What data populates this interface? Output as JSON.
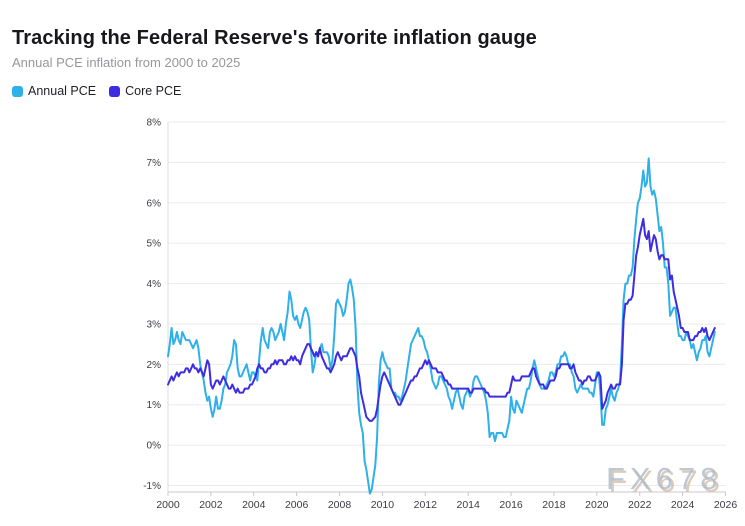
{
  "header": {
    "title": "Tracking the Federal Reserve's favorite inflation gauge",
    "subtitle": "Annual PCE inflation from 2000 to 2025"
  },
  "legend": [
    {
      "label": "Annual PCE",
      "color": "#2eb0e8"
    },
    {
      "label": "Core PCE",
      "color": "#3d2ce0"
    }
  ],
  "watermark": "FX678",
  "colors": {
    "grid": "#ebebee",
    "axis_line": "#c8c8cd",
    "left_axis_line": "#dcdce0",
    "tick_label": "#3c3c43"
  },
  "chart_data": {
    "type": "line",
    "title": "Tracking the Federal Reserve's favorite inflation gauge",
    "subtitle": "Annual PCE inflation from 2000 to 2025",
    "grid": true,
    "legend_position": "top-left",
    "x_axis": {
      "start_year": 2000,
      "interval": "monthly",
      "ticks": [
        2000,
        2002,
        2004,
        2006,
        2008,
        2010,
        2012,
        2014,
        2016,
        2018,
        2020,
        2022,
        2024,
        2026
      ]
    },
    "y_axis": {
      "min": -1,
      "max": 8,
      "ticks": [
        8,
        7,
        6,
        5,
        4,
        3,
        2,
        1,
        0,
        -1
      ],
      "tick_labels": [
        "8%",
        "7%",
        "6%",
        "5%",
        "4%",
        "3%",
        "2%",
        "1%",
        "0%",
        "-1%"
      ]
    },
    "series": [
      {
        "name": "Annual PCE",
        "color": "#2eb0e8",
        "values": [
          2.2,
          2.5,
          2.9,
          2.5,
          2.6,
          2.8,
          2.6,
          2.5,
          2.8,
          2.7,
          2.6,
          2.6,
          2.6,
          2.5,
          2.4,
          2.5,
          2.6,
          2.4,
          2.0,
          1.8,
          1.6,
          1.3,
          1.1,
          1.2,
          0.9,
          0.7,
          0.9,
          1.2,
          0.9,
          0.9,
          1.1,
          1.4,
          1.5,
          1.8,
          1.9,
          2.0,
          2.2,
          2.6,
          2.5,
          1.9,
          1.7,
          1.7,
          1.8,
          1.9,
          2.0,
          1.8,
          1.6,
          1.8,
          1.8,
          1.7,
          1.6,
          2.1,
          2.6,
          2.9,
          2.6,
          2.5,
          2.4,
          2.8,
          2.9,
          2.8,
          2.6,
          2.7,
          2.8,
          3.0,
          2.8,
          2.6,
          3.0,
          3.3,
          3.8,
          3.6,
          3.2,
          3.1,
          3.2,
          3.0,
          2.9,
          3.1,
          3.3,
          3.4,
          3.3,
          3.1,
          2.4,
          1.8,
          2.0,
          2.3,
          2.2,
          2.4,
          2.5,
          2.3,
          2.3,
          2.3,
          2.2,
          1.9,
          2.1,
          2.7,
          3.5,
          3.6,
          3.5,
          3.4,
          3.2,
          3.3,
          3.6,
          4.0,
          4.1,
          3.9,
          3.6,
          2.9,
          1.5,
          0.8,
          0.5,
          0.3,
          -0.4,
          -0.6,
          -0.9,
          -1.2,
          -1.1,
          -0.8,
          -0.5,
          0.2,
          1.5,
          2.1,
          2.3,
          2.1,
          2.0,
          1.9,
          1.9,
          1.4,
          1.3,
          1.3,
          1.2,
          1.2,
          1.1,
          1.2,
          1.4,
          1.6,
          1.9,
          2.2,
          2.5,
          2.6,
          2.7,
          2.8,
          2.9,
          2.7,
          2.7,
          2.6,
          2.4,
          2.3,
          2.1,
          1.9,
          1.6,
          1.5,
          1.4,
          1.5,
          1.7,
          1.7,
          1.6,
          1.5,
          1.4,
          1.2,
          1.1,
          0.9,
          1.1,
          1.3,
          1.4,
          1.2,
          1.0,
          0.9,
          1.2,
          1.3,
          1.4,
          1.2,
          1.3,
          1.6,
          1.7,
          1.7,
          1.6,
          1.5,
          1.4,
          1.3,
          1.1,
          0.8,
          0.2,
          0.3,
          0.3,
          0.1,
          0.3,
          0.3,
          0.3,
          0.3,
          0.2,
          0.2,
          0.4,
          0.6,
          1.2,
          0.9,
          0.8,
          1.1,
          1.0,
          0.9,
          0.8,
          1.0,
          1.2,
          1.4,
          1.4,
          1.6,
          1.9,
          2.1,
          1.9,
          1.7,
          1.5,
          1.4,
          1.4,
          1.4,
          1.5,
          1.6,
          1.8,
          1.8,
          1.7,
          1.8,
          2.0,
          2.0,
          2.2,
          2.2,
          2.3,
          2.2,
          2.0,
          2.0,
          1.8,
          1.7,
          1.4,
          1.3,
          1.4,
          1.5,
          1.4,
          1.4,
          1.4,
          1.4,
          1.3,
          1.3,
          1.2,
          1.5,
          1.8,
          1.8,
          1.3,
          0.5,
          0.5,
          0.9,
          1.0,
          1.2,
          1.4,
          1.2,
          1.1,
          1.3,
          1.4,
          1.6,
          2.5,
          3.6,
          4.0,
          4.0,
          4.2,
          4.2,
          4.4,
          5.1,
          5.6,
          6.0,
          6.1,
          6.4,
          6.8,
          6.4,
          6.5,
          7.1,
          6.4,
          6.2,
          6.3,
          6.1,
          5.7,
          5.3,
          5.4,
          5.0,
          4.4,
          4.4,
          4.0,
          3.2,
          3.3,
          3.4,
          3.4,
          3.0,
          2.7,
          2.7,
          2.6,
          2.6,
          2.8,
          2.7,
          2.6,
          2.4,
          2.5,
          2.3,
          2.1,
          2.3,
          2.4,
          2.6,
          2.6,
          2.7,
          2.3,
          2.2,
          2.4,
          2.6,
          2.8
        ]
      },
      {
        "name": "Core PCE",
        "color": "#3d2ce0",
        "values": [
          1.5,
          1.6,
          1.7,
          1.6,
          1.7,
          1.8,
          1.7,
          1.8,
          1.8,
          1.8,
          1.9,
          1.9,
          1.8,
          1.9,
          2.0,
          1.9,
          1.9,
          1.8,
          1.9,
          1.8,
          1.7,
          1.9,
          2.1,
          2.0,
          1.5,
          1.4,
          1.5,
          1.6,
          1.6,
          1.5,
          1.6,
          1.7,
          1.6,
          1.5,
          1.4,
          1.4,
          1.5,
          1.4,
          1.3,
          1.4,
          1.3,
          1.3,
          1.3,
          1.4,
          1.4,
          1.4,
          1.5,
          1.5,
          1.6,
          1.7,
          1.9,
          2.0,
          1.9,
          1.9,
          1.8,
          1.8,
          1.9,
          1.9,
          2.0,
          2.0,
          2.1,
          2.0,
          2.1,
          2.1,
          2.1,
          2.0,
          2.0,
          2.1,
          2.1,
          2.2,
          2.1,
          2.2,
          2.1,
          2.1,
          2.0,
          2.2,
          2.3,
          2.4,
          2.5,
          2.5,
          2.4,
          2.3,
          2.2,
          2.3,
          2.2,
          2.4,
          2.2,
          2.1,
          2.0,
          1.9,
          1.9,
          1.8,
          1.9,
          2.0,
          2.2,
          2.3,
          2.2,
          2.1,
          2.2,
          2.2,
          2.2,
          2.3,
          2.4,
          2.4,
          2.3,
          2.2,
          1.9,
          1.7,
          1.3,
          1.1,
          0.9,
          0.7,
          0.65,
          0.6,
          0.6,
          0.65,
          0.7,
          0.9,
          1.2,
          1.5,
          1.7,
          1.8,
          1.7,
          1.6,
          1.5,
          1.4,
          1.3,
          1.2,
          1.1,
          1.0,
          1.0,
          1.1,
          1.2,
          1.3,
          1.4,
          1.5,
          1.6,
          1.6,
          1.7,
          1.7,
          1.8,
          1.9,
          1.9,
          2.0,
          2.1,
          2.0,
          2.1,
          2.0,
          1.9,
          1.9,
          1.9,
          1.8,
          1.8,
          1.8,
          1.7,
          1.6,
          1.6,
          1.5,
          1.5,
          1.4,
          1.4,
          1.4,
          1.4,
          1.4,
          1.4,
          1.4,
          1.4,
          1.4,
          1.4,
          1.3,
          1.3,
          1.4,
          1.4,
          1.4,
          1.4,
          1.4,
          1.4,
          1.4,
          1.3,
          1.3,
          1.2,
          1.2,
          1.2,
          1.2,
          1.2,
          1.2,
          1.2,
          1.2,
          1.2,
          1.2,
          1.3,
          1.3,
          1.5,
          1.7,
          1.6,
          1.6,
          1.6,
          1.6,
          1.7,
          1.7,
          1.7,
          1.7,
          1.7,
          1.8,
          1.9,
          1.9,
          1.7,
          1.6,
          1.5,
          1.5,
          1.5,
          1.4,
          1.4,
          1.5,
          1.6,
          1.6,
          1.6,
          1.7,
          1.9,
          1.9,
          2.0,
          2.0,
          2.0,
          2.0,
          2.0,
          1.9,
          1.9,
          2.0,
          1.8,
          1.7,
          1.6,
          1.6,
          1.5,
          1.6,
          1.6,
          1.7,
          1.7,
          1.6,
          1.6,
          1.6,
          1.7,
          1.8,
          1.7,
          0.9,
          1.0,
          1.1,
          1.3,
          1.4,
          1.5,
          1.4,
          1.4,
          1.5,
          1.5,
          1.5,
          2.0,
          3.1,
          3.5,
          3.5,
          3.6,
          3.6,
          3.7,
          4.2,
          4.7,
          4.9,
          5.2,
          5.4,
          5.6,
          5.2,
          5.1,
          5.3,
          4.8,
          5.0,
          5.2,
          5.1,
          4.8,
          4.6,
          4.7,
          4.7,
          4.6,
          4.6,
          4.6,
          4.1,
          4.2,
          3.8,
          3.6,
          3.4,
          3.2,
          2.9,
          2.9,
          2.8,
          2.8,
          2.8,
          2.6,
          2.6,
          2.6,
          2.7,
          2.7,
          2.8,
          2.8,
          2.9,
          2.8,
          2.9,
          2.7,
          2.6,
          2.7,
          2.8,
          2.9
        ]
      }
    ]
  }
}
